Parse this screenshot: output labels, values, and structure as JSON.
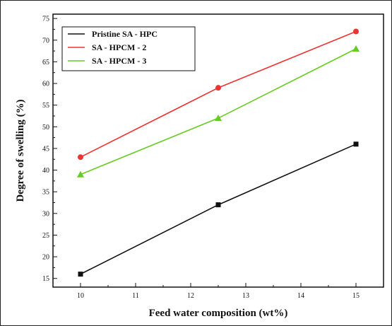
{
  "chart_data": {
    "type": "line",
    "title": "",
    "xlabel": "Feed water composition (wt%)",
    "ylabel": "Degree of swelling (%)",
    "xlim": [
      9.5,
      15.5
    ],
    "ylim": [
      13,
      76
    ],
    "xticks": [
      10,
      11,
      12,
      13,
      14,
      15
    ],
    "yticks": [
      15,
      20,
      25,
      30,
      35,
      40,
      45,
      50,
      55,
      60,
      65,
      70,
      75
    ],
    "grid": false,
    "legend_position": "top-left",
    "x": [
      10,
      12.5,
      15
    ],
    "series": [
      {
        "name": "Pristine SA - HPC",
        "values": [
          16,
          32,
          46
        ],
        "color": "#111111",
        "marker": "square"
      },
      {
        "name": "SA - HPCM - 2",
        "values": [
          43,
          59,
          72
        ],
        "color": "#ee3333",
        "marker": "circle"
      },
      {
        "name": "SA - HPCM - 3",
        "values": [
          39,
          52,
          68
        ],
        "color": "#66cc22",
        "marker": "triangle"
      }
    ]
  }
}
